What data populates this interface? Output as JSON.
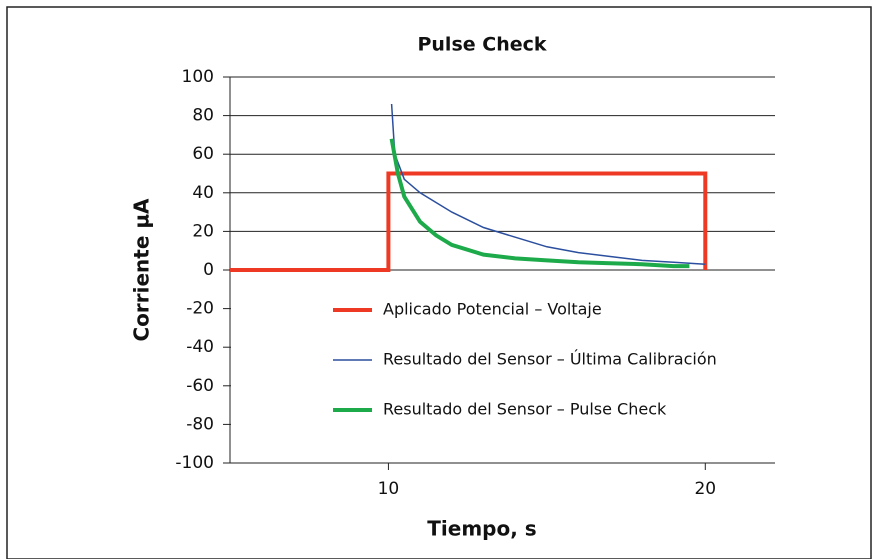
{
  "chart_data": {
    "type": "line",
    "title": "Pulse Check",
    "xlabel": "Tiempo, s",
    "ylabel": "Corriente µA",
    "xlim": [
      5,
      22.2
    ],
    "xticks": [
      10,
      20
    ],
    "ylim": [
      -100,
      100
    ],
    "yticks": [
      -100,
      -80,
      -60,
      -40,
      -20,
      0,
      20,
      40,
      60,
      80,
      100
    ],
    "grid": true,
    "legend": "center",
    "series": [
      {
        "name": "Aplicado Potencial – Voltaje",
        "color": "#ee3a24",
        "width": 4,
        "x": [
          5,
          10,
          10,
          20,
          20
        ],
        "values": [
          0,
          0,
          50,
          50,
          0
        ]
      },
      {
        "name": "Resultado del Sensor – Última Calibración",
        "color": "#2b4f9e",
        "width": 1.5,
        "x": [
          10.1,
          10.2,
          10.5,
          11,
          12,
          13,
          14,
          15,
          16,
          17,
          18,
          19,
          20
        ],
        "values": [
          86,
          60,
          47,
          40,
          30,
          22,
          17,
          12,
          9,
          7,
          5,
          4,
          3
        ]
      },
      {
        "name": "Resultado del Sensor – Pulse Check",
        "color": "#1daa4a",
        "width": 4,
        "x": [
          10.1,
          10.3,
          10.5,
          11,
          11.5,
          12,
          13,
          14,
          15,
          16,
          17,
          18,
          19,
          19.5
        ],
        "values": [
          68,
          50,
          38,
          25,
          18,
          13,
          8,
          6,
          5,
          4,
          3.5,
          3,
          2,
          2
        ]
      }
    ]
  }
}
